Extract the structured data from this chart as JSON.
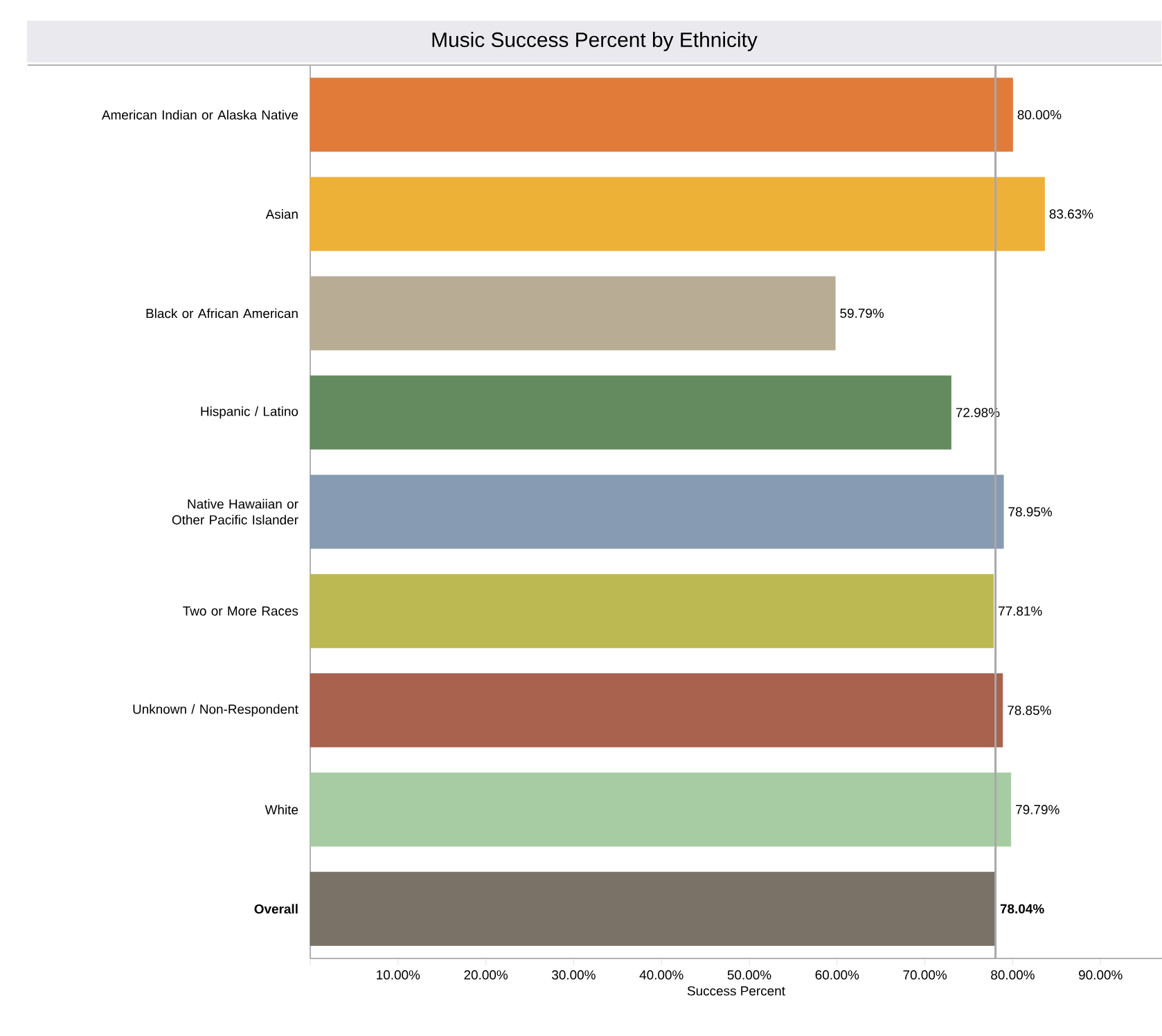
{
  "chart_data": {
    "type": "bar",
    "orientation": "horizontal",
    "title": "Music Success Percent by Ethnicity",
    "xlabel": "Success Percent",
    "categories": [
      "American Indian or Alaska Native",
      "Asian",
      "Black or African American",
      "Hispanic / Latino",
      "Native Hawaiian or Other Pacific Islander",
      "Two or More Races",
      "Unknown / Non-Respondent",
      "White",
      "Overall"
    ],
    "values": [
      80.0,
      83.63,
      59.79,
      72.98,
      78.95,
      77.81,
      78.85,
      79.79,
      78.04
    ],
    "value_labels": [
      "80.00%",
      "83.63%",
      "59.79%",
      "72.98%",
      "78.95%",
      "77.81%",
      "78.85%",
      "79.79%",
      "78.04%"
    ],
    "colors": [
      "#e07b39",
      "#eeb137",
      "#b8ac95",
      "#648a5f",
      "#879bb3",
      "#bdb952",
      "#a8624d",
      "#a7cba3",
      "#7a7266"
    ],
    "xlim": [
      0,
      97
    ],
    "xticks": [
      {
        "value": 0,
        "label": null
      },
      {
        "value": 10,
        "label": "10.00%"
      },
      {
        "value": 20,
        "label": "20.00%"
      },
      {
        "value": 30,
        "label": "30.00%"
      },
      {
        "value": 40,
        "label": "40.00%"
      },
      {
        "value": 50,
        "label": "50.00%"
      },
      {
        "value": 60,
        "label": "60.00%"
      },
      {
        "value": 70,
        "label": "70.00%"
      },
      {
        "value": 80,
        "label": "80.00%"
      },
      {
        "value": 90,
        "label": "90.00%"
      }
    ],
    "ref_lines": [
      {
        "axis": "x",
        "value": 78.04,
        "color": "#a8a8a8"
      }
    ]
  }
}
